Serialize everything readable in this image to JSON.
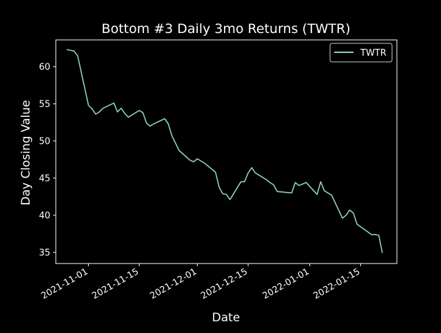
{
  "chart_data": {
    "type": "line",
    "title": "Bottom #3 Daily 3mo Returns (TWTR)",
    "xlabel": "Date",
    "ylabel": "Day Closing Value",
    "x_ticks": [
      "2021-11-01",
      "2021-11-15",
      "2021-12-01",
      "2021-12-15",
      "2022-01-01",
      "2022-01-15"
    ],
    "y_ticks": [
      35,
      40,
      45,
      50,
      55,
      60
    ],
    "xlim": [
      "2021-10-23",
      "2022-01-25"
    ],
    "ylim": [
      33.5,
      63.6
    ],
    "grid": false,
    "legend_position": "top-right",
    "colors": {
      "background": "#000000",
      "foreground": "#ffffff",
      "series": "#8dd3c7"
    },
    "series": [
      {
        "name": "TWTR",
        "x": [
          "2021-10-26",
          "2021-10-27",
          "2021-10-28",
          "2021-10-29",
          "2021-11-01",
          "2021-11-02",
          "2021-11-03",
          "2021-11-04",
          "2021-11-05",
          "2021-11-08",
          "2021-11-09",
          "2021-11-10",
          "2021-11-11",
          "2021-11-12",
          "2021-11-15",
          "2021-11-16",
          "2021-11-17",
          "2021-11-18",
          "2021-11-19",
          "2021-11-22",
          "2021-11-23",
          "2021-11-24",
          "2021-11-26",
          "2021-11-29",
          "2021-11-30",
          "2021-12-01",
          "2021-12-02",
          "2021-12-03",
          "2021-12-06",
          "2021-12-07",
          "2021-12-08",
          "2021-12-09",
          "2021-12-10",
          "2021-12-13",
          "2021-12-14",
          "2021-12-15",
          "2021-12-16",
          "2021-12-17",
          "2021-12-20",
          "2021-12-21",
          "2021-12-22",
          "2021-12-23",
          "2021-12-27",
          "2021-12-28",
          "2021-12-29",
          "2021-12-30",
          "2021-12-31",
          "2022-01-03",
          "2022-01-04",
          "2022-01-05",
          "2022-01-06",
          "2022-01-07",
          "2022-01-10",
          "2022-01-11",
          "2022-01-12",
          "2022-01-13",
          "2022-01-14",
          "2022-01-18",
          "2022-01-19",
          "2022-01-20",
          "2022-01-21"
        ],
        "values": [
          62.3,
          62.2,
          62.1,
          61.5,
          54.8,
          54.3,
          53.6,
          53.9,
          54.4,
          55.1,
          53.9,
          54.4,
          53.7,
          53.2,
          54.1,
          53.8,
          52.4,
          52.0,
          52.3,
          53.0,
          52.3,
          50.7,
          48.7,
          47.4,
          47.2,
          47.6,
          47.3,
          47.0,
          45.8,
          43.8,
          42.9,
          42.8,
          42.1,
          44.5,
          44.5,
          45.7,
          46.4,
          45.7,
          44.8,
          44.4,
          44.1,
          43.2,
          43.0,
          44.4,
          44.0,
          44.2,
          44.4,
          42.8,
          44.5,
          43.3,
          43.0,
          42.7,
          39.6,
          40.0,
          40.7,
          40.3,
          38.8,
          37.4,
          37.4,
          37.3,
          34.9
        ]
      }
    ]
  }
}
